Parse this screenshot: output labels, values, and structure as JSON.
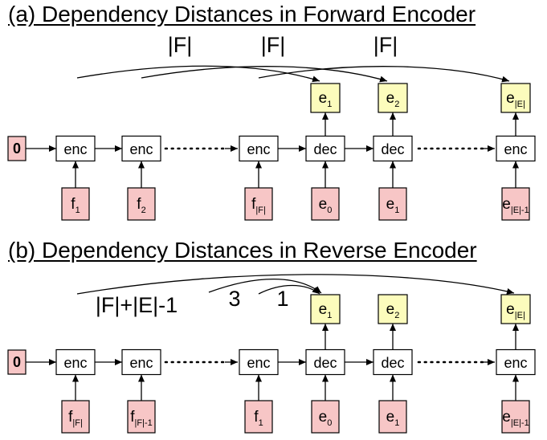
{
  "colors": {
    "pink": "#f7c6c6",
    "yellow": "#fcfcbc",
    "white": "#ffffff",
    "stroke": "#000000"
  },
  "panel_a": {
    "title": "(a) Dependency Distances in Forward Encoder",
    "distance_labels": [
      "|F|",
      "|F|",
      "|F|"
    ],
    "init_label": "0",
    "row_nodes": [
      "enc",
      "enc",
      "enc",
      "dec",
      "dec",
      "enc"
    ],
    "ellipsis": "·····",
    "outputs": [
      {
        "base": "e",
        "sub": "1"
      },
      {
        "base": "e",
        "sub": "2"
      },
      {
        "base": "e",
        "sub": "|E|"
      }
    ],
    "inputs": [
      {
        "base": "f",
        "sub": "1"
      },
      {
        "base": "f",
        "sub": "2"
      },
      {
        "base": "f",
        "sub": "|F|"
      },
      {
        "base": "e",
        "sub": "0"
      },
      {
        "base": "e",
        "sub": "1"
      },
      {
        "base": "e",
        "sub": "|E|-1"
      }
    ]
  },
  "panel_b": {
    "title": "(b) Dependency Distances in Reverse Encoder",
    "distance_labels": [
      "|F|+|E|-1",
      "3",
      "1"
    ],
    "init_label": "0",
    "row_nodes": [
      "enc",
      "enc",
      "enc",
      "dec",
      "dec",
      "enc"
    ],
    "ellipsis": "·····",
    "outputs": [
      {
        "base": "e",
        "sub": "1"
      },
      {
        "base": "e",
        "sub": "2"
      },
      {
        "base": "e",
        "sub": "|E|"
      }
    ],
    "inputs": [
      {
        "base": "f",
        "sub": "|F|"
      },
      {
        "base": "f",
        "sub": "|F|-1"
      },
      {
        "base": "f",
        "sub": "1"
      },
      {
        "base": "e",
        "sub": "0"
      },
      {
        "base": "e",
        "sub": "1"
      },
      {
        "base": "e",
        "sub": "|E|-1"
      }
    ]
  }
}
